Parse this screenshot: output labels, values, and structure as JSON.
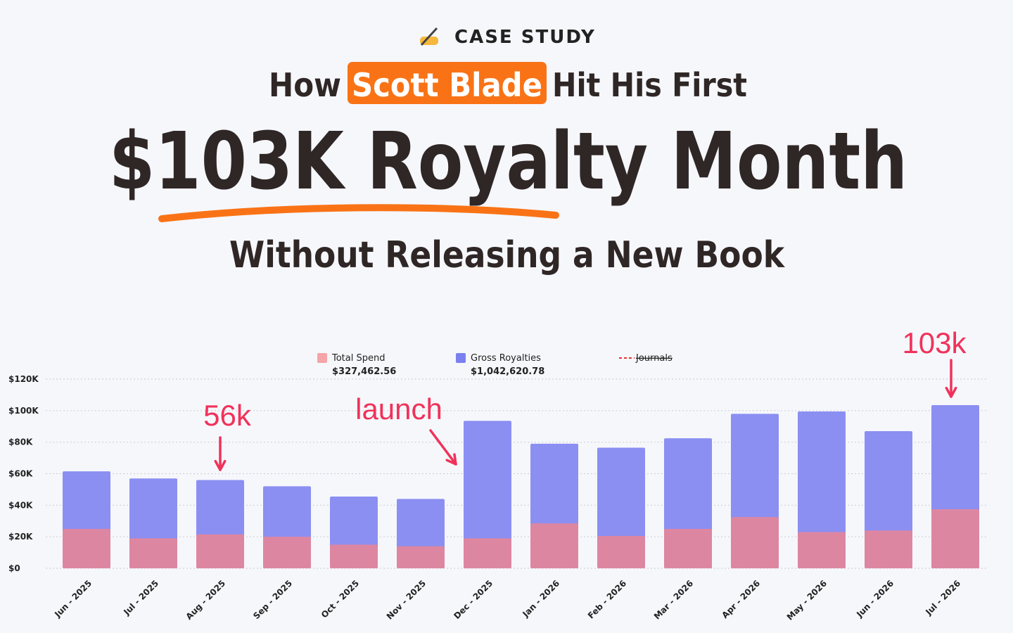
{
  "header": {
    "label": "CASE STUDY",
    "line1": [
      "How",
      "Scott Blade",
      "Hit His First"
    ],
    "title": "$103K Royalty Month",
    "subtitle": "Without Releasing a New Book"
  },
  "chart_data": {
    "type": "bar",
    "categories": [
      "Jun - 2025",
      "Jul - 2025",
      "Aug - 2025",
      "Sep - 2025",
      "Oct - 2025",
      "Nov - 2025",
      "Dec - 2025",
      "Jan - 2026",
      "Feb - 2026",
      "Mar - 2026",
      "Apr - 2026",
      "May - 2026",
      "Jun - 2026",
      "Jul - 2026"
    ],
    "series": [
      {
        "name": "Gross Royalties",
        "color": "#8b8ff2",
        "legend_color": "#7b80ef",
        "total_label": "$1,042,620.78",
        "values": [
          61500,
          57000,
          56000,
          52000,
          45500,
          44000,
          93500,
          79000,
          76500,
          82500,
          98000,
          99500,
          87000,
          103500
        ]
      },
      {
        "name": "Total Spend",
        "color": "#dd86a2",
        "legend_color": "#f5a4a8",
        "total_label": "$327,462.56",
        "values": [
          25000,
          19000,
          21500,
          20000,
          15000,
          14000,
          19000,
          28500,
          20500,
          25000,
          32500,
          23000,
          24000,
          37500
        ]
      }
    ],
    "legend_order": [
      "Total Spend",
      "Gross Royalties"
    ],
    "hidden_legend": {
      "name": "Journals",
      "color": "#f03030"
    },
    "ylim": [
      0,
      120000
    ],
    "yticks": [
      {
        "value": 0,
        "label": "$0"
      },
      {
        "value": 20000,
        "label": "$20K"
      },
      {
        "value": 40000,
        "label": "$40K"
      },
      {
        "value": 60000,
        "label": "$60K"
      },
      {
        "value": 80000,
        "label": "$80K"
      },
      {
        "value": 100000,
        "label": "$100K"
      },
      {
        "value": 120000,
        "label": "$120K"
      }
    ],
    "grid": true,
    "annotations": [
      {
        "text": "56k",
        "at": "Aug - 2025"
      },
      {
        "text": "launch",
        "at": "Dec - 2025"
      },
      {
        "text": "103k",
        "at": "Jul - 2026"
      }
    ]
  }
}
